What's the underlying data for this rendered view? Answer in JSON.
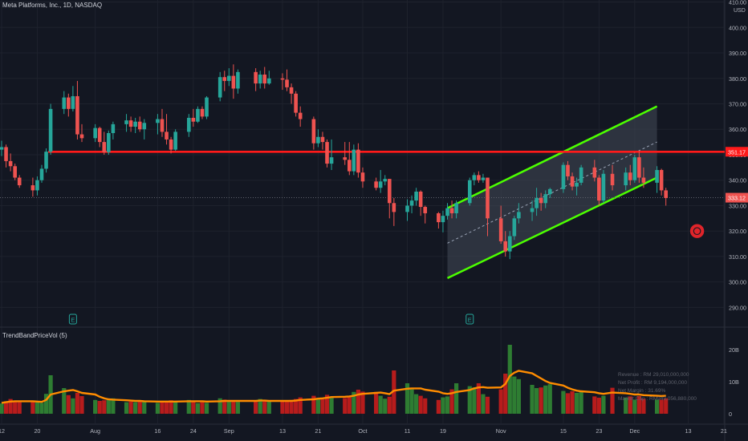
{
  "chart_data": {
    "type": "candlestick",
    "title": "Meta Platforms, Inc., 1D, NASDAQ",
    "currency": "USD",
    "indicator_title": "TrendBandPriceVol (5)",
    "y_ticks": [
      290,
      300,
      310,
      320,
      330,
      340,
      350,
      360,
      370,
      380,
      390,
      400,
      410
    ],
    "y_tick_labels": [
      "290.00",
      "300.00",
      "310.00",
      "320.00",
      "330.00",
      "340.00",
      "350.00",
      "360.00",
      "370.00",
      "380.00",
      "390.00",
      "400.00",
      "410.00"
    ],
    "ylim": [
      283.2,
      410.8
    ],
    "x_tick_labels": [
      {
        "date": "2021-07-12",
        "label": "12"
      },
      {
        "date": "2021-07-20",
        "label": "20"
      },
      {
        "date": "2021-08-02",
        "label": "Aug"
      },
      {
        "date": "2021-08-16",
        "label": "16"
      },
      {
        "date": "2021-08-24",
        "label": "24"
      },
      {
        "date": "2021-09-01",
        "label": "Sep"
      },
      {
        "date": "2021-09-13",
        "label": "13"
      },
      {
        "date": "2021-09-21",
        "label": "21"
      },
      {
        "date": "2021-10-01",
        "label": "Oct"
      },
      {
        "date": "2021-10-11",
        "label": "11"
      },
      {
        "date": "2021-10-19",
        "label": "19"
      },
      {
        "date": "2021-11-01",
        "label": "Nov"
      },
      {
        "date": "2021-11-15",
        "label": "15"
      },
      {
        "date": "2021-11-23",
        "label": "23"
      },
      {
        "date": "2021-12-01",
        "label": "Dec"
      },
      {
        "date": "2021-12-13",
        "label": "13"
      },
      {
        "date": "2021-12-21",
        "label": "21"
      }
    ],
    "candles": {
      "fields": [
        "date",
        "open",
        "high",
        "low",
        "close"
      ],
      "rows": [
        [
          "2021-07-12",
          352.0,
          355.5,
          349.5,
          353.0
        ],
        [
          "2021-07-13",
          353.0,
          354.0,
          345.0,
          347.5
        ],
        [
          "2021-07-14",
          347.5,
          350.5,
          343.5,
          345.5
        ],
        [
          "2021-07-15",
          345.5,
          346.5,
          340.0,
          341.0
        ],
        [
          "2021-07-16",
          341.0,
          342.0,
          337.0,
          338.0
        ],
        [
          "2021-07-19",
          338.0,
          341.0,
          333.5,
          336.0
        ],
        [
          "2021-07-20",
          336.0,
          341.5,
          334.0,
          340.0
        ],
        [
          "2021-07-21",
          340.0,
          346.0,
          339.0,
          344.5
        ],
        [
          "2021-07-22",
          344.5,
          352.5,
          343.0,
          351.2
        ],
        [
          "2021-07-23",
          351.2,
          370.0,
          350.0,
          368.0
        ],
        [
          "2021-07-26",
          368.0,
          375.0,
          366.0,
          372.5
        ],
        [
          "2021-07-27",
          372.5,
          374.0,
          365.0,
          368.0
        ],
        [
          "2021-07-28",
          368.0,
          377.0,
          367.0,
          373.0
        ],
        [
          "2021-07-29",
          373.0,
          379.0,
          356.0,
          358.0
        ],
        [
          "2021-07-30",
          358.0,
          362.0,
          355.0,
          356.5
        ],
        [
          "2021-08-02",
          356.5,
          362.0,
          355.0,
          360.5
        ],
        [
          "2021-08-03",
          360.5,
          361.0,
          353.0,
          355.0
        ],
        [
          "2021-08-04",
          355.0,
          359.0,
          350.0,
          351.0
        ],
        [
          "2021-08-05",
          351.0,
          359.5,
          350.0,
          358.5
        ],
        [
          "2021-08-06",
          358.5,
          363.0,
          356.0,
          362.0
        ],
        [
          "2021-08-09",
          362.0,
          366.0,
          359.0,
          363.5
        ],
        [
          "2021-08-10",
          363.5,
          365.0,
          359.0,
          361.0
        ],
        [
          "2021-08-11",
          361.0,
          364.5,
          358.5,
          363.0
        ],
        [
          "2021-08-12",
          363.0,
          365.0,
          359.0,
          360.0
        ],
        [
          "2021-08-13",
          360.0,
          364.0,
          356.0,
          362.5
        ],
        [
          "2021-08-16",
          362.5,
          366.0,
          358.0,
          364.0
        ],
        [
          "2021-08-17",
          364.0,
          368.0,
          357.0,
          359.0
        ],
        [
          "2021-08-18",
          359.0,
          366.0,
          354.0,
          356.0
        ],
        [
          "2021-08-19",
          356.0,
          357.0,
          350.5,
          352.0
        ],
        [
          "2021-08-20",
          352.0,
          360.0,
          351.5,
          359.0
        ],
        [
          "2021-08-23",
          359.0,
          366.0,
          357.0,
          364.5
        ],
        [
          "2021-08-24",
          364.5,
          368.0,
          361.0,
          363.0
        ],
        [
          "2021-08-25",
          363.0,
          369.0,
          362.5,
          368.0
        ],
        [
          "2021-08-26",
          368.0,
          369.0,
          364.0,
          365.0
        ],
        [
          "2021-08-27",
          365.0,
          373.0,
          364.0,
          372.5
        ],
        [
          "2021-08-30",
          372.5,
          382.5,
          371.0,
          380.5
        ],
        [
          "2021-08-31",
          380.5,
          383.0,
          375.0,
          379.0
        ],
        [
          "2021-09-01",
          379.0,
          384.0,
          377.0,
          381.0
        ],
        [
          "2021-09-02",
          381.0,
          385.5,
          372.0,
          376.0
        ],
        [
          "2021-09-03",
          376.0,
          383.5,
          374.0,
          382.5
        ],
        [
          "2021-09-07",
          382.5,
          384.0,
          375.0,
          378.0
        ],
        [
          "2021-09-08",
          378.0,
          383.0,
          376.0,
          381.5
        ],
        [
          "2021-09-09",
          381.5,
          384.5,
          376.0,
          378.0
        ],
        [
          "2021-09-10",
          378.0,
          383.0,
          377.5,
          380.0
        ],
        [
          "2021-09-13",
          380.0,
          382.0,
          375.5,
          379.5
        ],
        [
          "2021-09-14",
          379.5,
          383.5,
          375.0,
          376.5
        ],
        [
          "2021-09-15",
          376.5,
          378.0,
          370.0,
          374.0
        ],
        [
          "2021-09-16",
          374.0,
          375.0,
          365.0,
          366.5
        ],
        [
          "2021-09-17",
          366.5,
          369.0,
          361.0,
          364.0
        ],
        [
          "2021-09-20",
          364.0,
          365.0,
          352.0,
          354.5
        ],
        [
          "2021-09-21",
          354.5,
          360.0,
          353.0,
          357.0
        ],
        [
          "2021-09-22",
          357.0,
          359.0,
          352.0,
          355.0
        ],
        [
          "2021-09-23",
          355.0,
          356.0,
          345.0,
          346.5
        ],
        [
          "2021-09-24",
          346.5,
          356.0,
          344.0,
          349.0
        ],
        [
          "2021-09-27",
          349.0,
          355.0,
          346.0,
          348.0
        ],
        [
          "2021-09-28",
          348.0,
          355.0,
          342.0,
          343.5
        ],
        [
          "2021-09-29",
          343.5,
          354.0,
          342.0,
          352.0
        ],
        [
          "2021-09-30",
          352.0,
          354.5,
          341.0,
          343.0
        ],
        [
          "2021-10-01",
          343.0,
          345.0,
          337.0,
          339.5
        ],
        [
          "2021-10-04",
          339.5,
          341.0,
          336.0,
          337.0
        ],
        [
          "2021-10-05",
          337.0,
          344.0,
          335.0,
          339.5
        ],
        [
          "2021-10-06",
          339.5,
          342.0,
          338.0,
          340.5
        ],
        [
          "2021-10-07",
          340.5,
          332.0,
          325.0,
          331.0
        ],
        [
          "2021-10-08",
          331.0,
          333.0,
          322.0,
          327.5
        ],
        [
          "2021-10-11",
          327.5,
          332.5,
          324.0,
          330.0
        ],
        [
          "2021-10-12",
          330.0,
          334.0,
          327.0,
          332.0
        ],
        [
          "2021-10-13",
          332.0,
          337.0,
          330.0,
          335.5
        ],
        [
          "2021-10-14",
          335.5,
          336.0,
          326.0,
          329.5
        ],
        [
          "2021-10-15",
          329.5,
          330.0,
          323.0,
          327.0
        ],
        [
          "2021-10-18",
          327.0,
          327.5,
          321.0,
          323.5
        ],
        [
          "2021-10-19",
          323.5,
          328.0,
          319.5,
          326.0
        ],
        [
          "2021-10-20",
          326.0,
          331.0,
          324.5,
          329.0
        ],
        [
          "2021-10-21",
          329.0,
          332.0,
          325.0,
          327.0
        ],
        [
          "2021-10-22",
          327.0,
          332.0,
          325.0,
          331.0
        ],
        [
          "2021-10-25",
          331.0,
          341.0,
          330.0,
          340.0
        ],
        [
          "2021-10-26",
          340.0,
          343.0,
          338.0,
          342.0
        ],
        [
          "2021-10-27",
          342.0,
          343.5,
          339.0,
          340.0
        ],
        [
          "2021-10-28",
          340.0,
          342.5,
          339.0,
          341.0
        ],
        [
          "2021-10-29",
          341.0,
          329.5,
          318.0,
          325.0
        ],
        [
          "2021-11-01",
          325.0,
          330.0,
          315.0,
          316.0
        ],
        [
          "2021-11-02",
          316.0,
          320.0,
          310.0,
          312.0
        ],
        [
          "2021-11-03",
          312.0,
          320.0,
          309.0,
          318.0
        ],
        [
          "2021-11-04",
          318.0,
          326.0,
          316.5,
          325.0
        ],
        [
          "2021-11-05",
          325.0,
          331.0,
          323.0,
          327.5
        ],
        [
          "2021-11-08",
          327.5,
          332.0,
          324.0,
          329.0
        ],
        [
          "2021-11-09",
          329.0,
          337.0,
          326.0,
          333.0
        ],
        [
          "2021-11-10",
          333.0,
          335.0,
          328.0,
          331.0
        ],
        [
          "2021-11-11",
          331.0,
          336.0,
          329.0,
          334.5
        ],
        [
          "2021-11-12",
          334.5,
          337.0,
          333.0,
          336.5
        ],
        [
          "2021-11-15",
          336.5,
          347.0,
          335.0,
          346.0
        ],
        [
          "2021-11-16",
          346.0,
          347.5,
          340.0,
          341.5
        ],
        [
          "2021-11-17",
          341.5,
          343.0,
          336.0,
          337.5
        ],
        [
          "2021-11-18",
          337.5,
          341.0,
          334.0,
          339.0
        ],
        [
          "2021-11-19",
          339.0,
          346.0,
          338.0,
          345.0
        ],
        [
          "2021-11-22",
          345.0,
          348.0,
          339.5,
          341.0
        ],
        [
          "2021-11-23",
          341.0,
          342.0,
          330.0,
          332.0
        ],
        [
          "2021-11-24",
          332.0,
          344.0,
          331.0,
          342.5
        ],
        [
          "2021-11-26",
          342.5,
          346.0,
          336.0,
          338.0
        ],
        [
          "2021-11-29",
          338.0,
          345.0,
          336.0,
          343.0
        ],
        [
          "2021-11-30",
          343.0,
          346.0,
          338.0,
          340.0
        ],
        [
          "2021-12-01",
          340.0,
          350.0,
          339.0,
          349.0
        ],
        [
          "2021-12-02",
          349.0,
          351.5,
          339.0,
          341.0
        ],
        [
          "2021-12-03",
          341.0,
          345.0,
          337.0,
          339.0
        ],
        [
          "2021-12-06",
          339.0,
          345.5,
          335.0,
          344.0
        ],
        [
          "2021-12-07",
          344.0,
          344.5,
          334.0,
          336.0
        ],
        [
          "2021-12-08",
          336.0,
          337.0,
          330.0,
          333.0
        ]
      ]
    },
    "volume": {
      "axis_ticks": [
        0,
        10,
        20
      ],
      "axis_labels": [
        "0",
        "10B",
        "20B"
      ],
      "unit": "B",
      "values": [
        3.2,
        3.9,
        4.6,
        4.0,
        3.6,
        4.0,
        3.5,
        3.4,
        6.2,
        12.0,
        8.0,
        5.8,
        4.8,
        6.5,
        5.5,
        4.3,
        4.0,
        4.2,
        4.5,
        4.8,
        3.6,
        3.8,
        3.6,
        4.0,
        3.9,
        3.4,
        3.6,
        3.7,
        4.2,
        4.0,
        4.3,
        4.1,
        3.3,
        3.6,
        3.4,
        4.8,
        4.4,
        4.1,
        4.0,
        3.7,
        3.8,
        4.6,
        4.0,
        3.8,
        4.1,
        3.9,
        4.3,
        4.6,
        5.1,
        5.6,
        4.9,
        4.5,
        5.9,
        5.3,
        4.9,
        5.6,
        6.8,
        7.5,
        6.9,
        6.8,
        5.6,
        4.7,
        5.3,
        13.5,
        9.5,
        7.6,
        6.1,
        5.6,
        4.8,
        4.3,
        5.1,
        5.4,
        7.6,
        9.5,
        8.6,
        8.2,
        9.5,
        6.1,
        5.3,
        7.6,
        12.5,
        21.5,
        11.6,
        10.8,
        9.0,
        8.0,
        8.2,
        8.8,
        9.2,
        7.1,
        6.4,
        7.0,
        6.5,
        7.0,
        5.4,
        5.0,
        5.6,
        8.1,
        5.0,
        5.4,
        4.4,
        5.5,
        4.7,
        4.4,
        4.4,
        4.8,
        3.5
      ],
      "average": [
        3.4,
        3.6,
        3.8,
        3.9,
        3.9,
        3.9,
        3.8,
        3.7,
        4.3,
        6.0,
        7.0,
        7.2,
        7.4,
        7.0,
        6.5,
        6.0,
        5.3,
        4.8,
        4.5,
        4.4,
        4.2,
        4.1,
        4.0,
        4.0,
        3.9,
        3.8,
        3.8,
        3.8,
        3.8,
        3.8,
        3.9,
        3.9,
        3.9,
        3.9,
        3.8,
        3.9,
        4.0,
        4.0,
        4.0,
        4.0,
        4.0,
        4.1,
        4.1,
        4.0,
        4.0,
        4.0,
        4.0,
        4.1,
        4.3,
        4.5,
        4.7,
        4.8,
        5.0,
        5.2,
        5.3,
        5.4,
        5.6,
        6.0,
        6.2,
        6.5,
        6.6,
        6.4,
        6.1,
        7.2,
        7.8,
        7.9,
        7.9,
        7.9,
        7.5,
        6.9,
        6.4,
        6.2,
        6.4,
        6.8,
        7.4,
        7.9,
        8.2,
        8.3,
        8.1,
        8.2,
        9.3,
        11.8,
        12.8,
        13.4,
        12.6,
        11.8,
        11.0,
        10.2,
        9.6,
        8.8,
        8.1,
        7.6,
        7.2,
        7.0,
        6.7,
        6.4,
        6.2,
        6.6,
        6.4,
        6.2,
        6.0,
        6.0,
        5.8,
        5.6,
        5.5,
        5.6,
        5.3
      ]
    },
    "annotations": {
      "horizontal_line": {
        "value": 351.17,
        "label": "351.17",
        "color": "#ff1a1a"
      },
      "last_price": {
        "value": 333.12,
        "label": "333.12",
        "color": "#ef5350"
      },
      "channel": {
        "upper": [
          {
            "date": "2021-10-20",
            "value": 329.0
          },
          {
            "date": "2021-12-06",
            "value": 369.0
          }
        ],
        "lower": [
          {
            "date": "2021-10-20",
            "value": 301.5
          },
          {
            "date": "2021-12-06",
            "value": 341.0
          }
        ],
        "color": "#4cff00"
      },
      "target_marker": {
        "date": "2021-12-15",
        "value": 320.0
      },
      "earnings_markers": [
        {
          "date": "2021-07-28",
          "label": "E"
        },
        {
          "date": "2021-10-25",
          "label": "E"
        }
      ]
    },
    "fundamentals_overlay": [
      "Revenue : RM 29,010,000,000",
      "Net Profit : RM 9,194,000,000",
      "Net Margin : 31.69%",
      "Market Cap : RM949,056,880,000"
    ],
    "colors": {
      "background": "#131722",
      "up": "#26a69a",
      "down": "#ef5350",
      "grid": "#1e222d",
      "volume_up": "#2e7d32",
      "volume_down": "#b71c1c",
      "volume_avg": "#ff8c00",
      "channel_fill": "#444a58"
    },
    "grid": true
  }
}
